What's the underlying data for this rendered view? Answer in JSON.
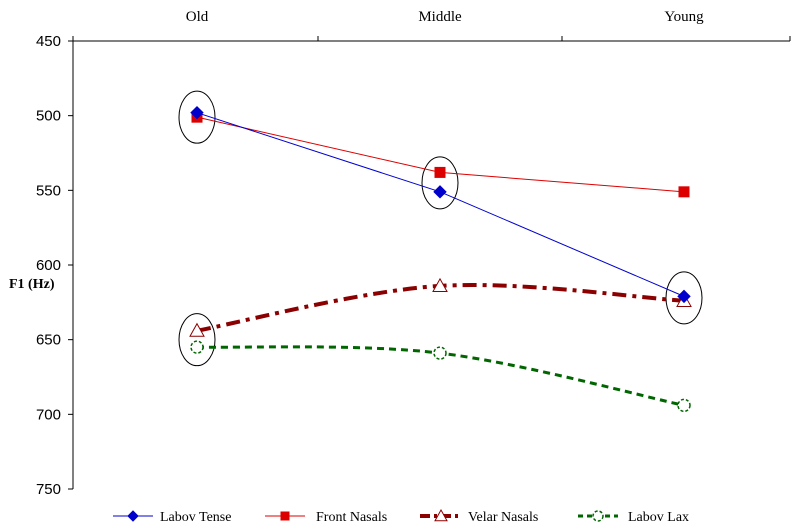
{
  "chart_data": {
    "type": "line",
    "title": "",
    "ylabel": "F1 (Hz)",
    "xlabel": "",
    "categories": [
      "Old",
      "Middle",
      "Young"
    ],
    "y_axis": {
      "min": 450,
      "max": 750,
      "step": 50,
      "reversed": true,
      "ticks": [
        "450",
        "500",
        "550",
        "600",
        "650",
        "700",
        "750"
      ]
    },
    "x_axis_position": "top",
    "grid": false,
    "legend_position": "bottom",
    "series": [
      {
        "name": "Labov Tense",
        "values": [
          498,
          551,
          621
        ],
        "color": "#0000cc",
        "marker": "diamond",
        "line": "solid-thin"
      },
      {
        "name": "Front Nasals",
        "values": [
          501,
          538,
          551
        ],
        "color": "#dd0000",
        "marker": "square",
        "line": "solid-thin"
      },
      {
        "name": "Velar Nasals",
        "values": [
          644,
          614,
          624
        ],
        "color": "#8b0000",
        "marker": "triangle-open",
        "line": "dash-dot-thick"
      },
      {
        "name": "Labov Lax",
        "values": [
          655,
          659,
          694
        ],
        "color": "#006600",
        "marker": "circle-open",
        "line": "dashed-thick"
      }
    ],
    "annotations": [
      {
        "type": "ellipse",
        "category": "Old",
        "y": 501
      },
      {
        "type": "ellipse",
        "category": "Middle",
        "y": 545
      },
      {
        "type": "ellipse",
        "category": "Young",
        "y": 622
      },
      {
        "type": "ellipse",
        "category": "Old",
        "y": 650
      }
    ]
  }
}
